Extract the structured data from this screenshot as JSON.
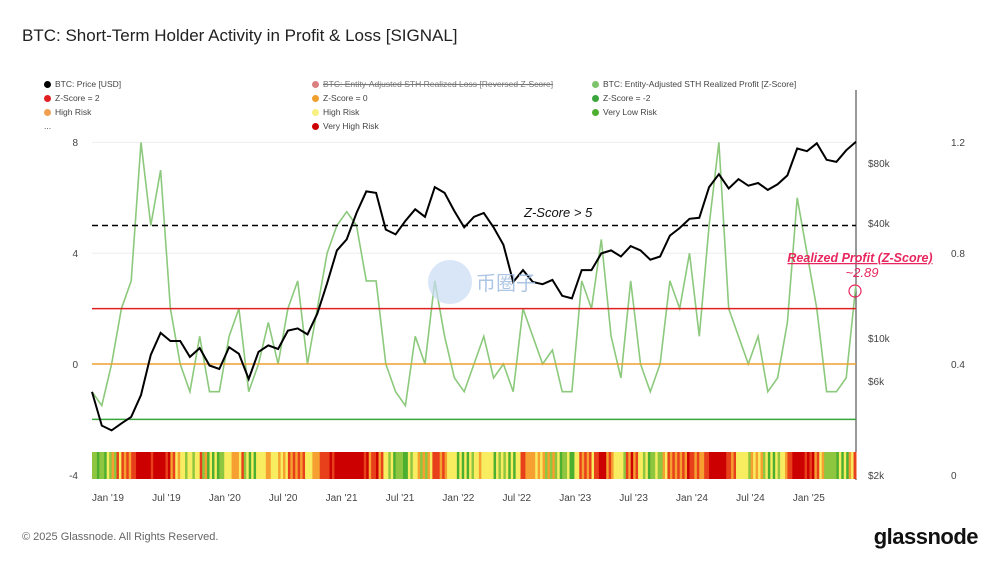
{
  "title": "BTC: Short-Term Holder Activity in Profit & Loss [SIGNAL]",
  "footer": "© 2025 Glassnode. All Rights Reserved.",
  "logo": "glassnode",
  "watermark": "币圈子",
  "legend": [
    {
      "label": "BTC: Price [USD]",
      "color": "#000000",
      "struck": false
    },
    {
      "label": "BTC: Entity-Adjusted STH Realized Loss [Reversed Z-Score]",
      "color": "#d98080",
      "struck": true
    },
    {
      "label": "BTC: Entity-Adjusted STH Realized Profit [Z-Score]",
      "color": "#7dc36b",
      "struck": false
    },
    {
      "label": "Z-Score = 2",
      "color": "#e02020",
      "struck": false
    },
    {
      "label": "Z-Score = 0",
      "color": "#f0a030",
      "struck": false
    },
    {
      "label": "Z-Score = -2",
      "color": "#3aa53a",
      "struck": false
    },
    {
      "label": "High Risk",
      "color": "#f0a050",
      "struck": false
    },
    {
      "label": "High Risk",
      "color": "#f8f080",
      "struck": false
    },
    {
      "label": "Very Low Risk",
      "color": "#4caf30",
      "struck": false
    },
    {
      "label": "...",
      "color": "",
      "struck": false
    },
    {
      "label": "Very High Risk",
      "color": "#cc0000",
      "struck": false
    }
  ],
  "annotation": {
    "label": "Realized Profit (Z-Score)",
    "value": "~2.89",
    "threshold_label": "Z-Score > 5"
  },
  "chart_data": {
    "type": "line",
    "title": "BTC: Short-Term Holder Activity in Profit & Loss [SIGNAL]",
    "x_start": "2018-11",
    "x_end": "2025-05",
    "x_step": "month",
    "x_ticks": [
      "Jan '19",
      "Jul '19",
      "Jan '20",
      "Jul '20",
      "Jan '21",
      "Jul '21",
      "Jan '22",
      "Jul '22",
      "Jan '23",
      "Jul '23",
      "Jan '24",
      "Jul '24",
      "Jan '25"
    ],
    "y_left_ticks": [
      "8",
      "4",
      "0",
      "-4"
    ],
    "y_left_range": [
      -4,
      8
    ],
    "y_price_ticks": [
      "$80k",
      "$40k",
      "$10k",
      "$6k",
      "$2k"
    ],
    "y_price_scale": "log",
    "y_right_ticks": [
      "1.2",
      "0.8",
      "0.4",
      "0"
    ],
    "thresholds": [
      {
        "name": "Z-Score = 5",
        "value": 5,
        "color": "#000000"
      },
      {
        "name": "Z-Score = 2",
        "value": 2,
        "color": "#e02020"
      },
      {
        "name": "Z-Score = 0",
        "value": 0,
        "color": "#f0a030"
      },
      {
        "name": "Z-Score = -2",
        "value": -2,
        "color": "#3aa53a"
      }
    ],
    "series": [
      {
        "name": "BTC: Price [USD]",
        "values": [
          5500,
          3700,
          3500,
          3800,
          4100,
          5300,
          8500,
          11000,
          10000,
          10000,
          8300,
          9200,
          7500,
          7200,
          9300,
          8600,
          6400,
          8800,
          9500,
          9100,
          11300,
          11600,
          10800,
          13800,
          19700,
          29000,
          33000,
          45000,
          58000,
          57000,
          37000,
          35000,
          41000,
          47000,
          43000,
          61000,
          57000,
          46000,
          38000,
          43000,
          45000,
          38000,
          31000,
          20000,
          23000,
          20000,
          19500,
          20500,
          17000,
          16500,
          23000,
          23000,
          28000,
          29000,
          27000,
          30500,
          29000,
          26000,
          27000,
          34500,
          37700,
          42000,
          42500,
          61000,
          71000,
          60000,
          67000,
          62000,
          64000,
          59000,
          63000,
          70000,
          96000,
          93000,
          102000,
          84000,
          82000,
          94000,
          104000
        ]
      },
      {
        "name": "BTC: Entity-Adjusted STH Realized Profit [Z-Score]",
        "values": [
          -1,
          -1.5,
          0,
          2,
          3,
          8,
          5,
          7,
          2,
          0,
          -1,
          1,
          -1,
          -1,
          1,
          2,
          -1,
          0,
          1.5,
          0,
          2,
          3,
          0,
          2,
          4,
          5,
          5.5,
          5,
          3,
          3,
          0,
          -1,
          -1.5,
          1,
          0,
          3,
          1,
          -0.5,
          -1,
          0,
          1,
          -0.5,
          0,
          -1,
          2,
          1,
          0,
          0.5,
          -1,
          -1,
          3,
          2,
          4.5,
          1,
          -0.5,
          3,
          0,
          -1,
          0,
          3,
          2,
          4,
          1,
          5,
          8,
          2,
          1,
          0,
          1,
          -1,
          -0.5,
          1.5,
          6,
          4,
          2,
          -1,
          -1,
          -0.5,
          2.89
        ]
      }
    ]
  }
}
